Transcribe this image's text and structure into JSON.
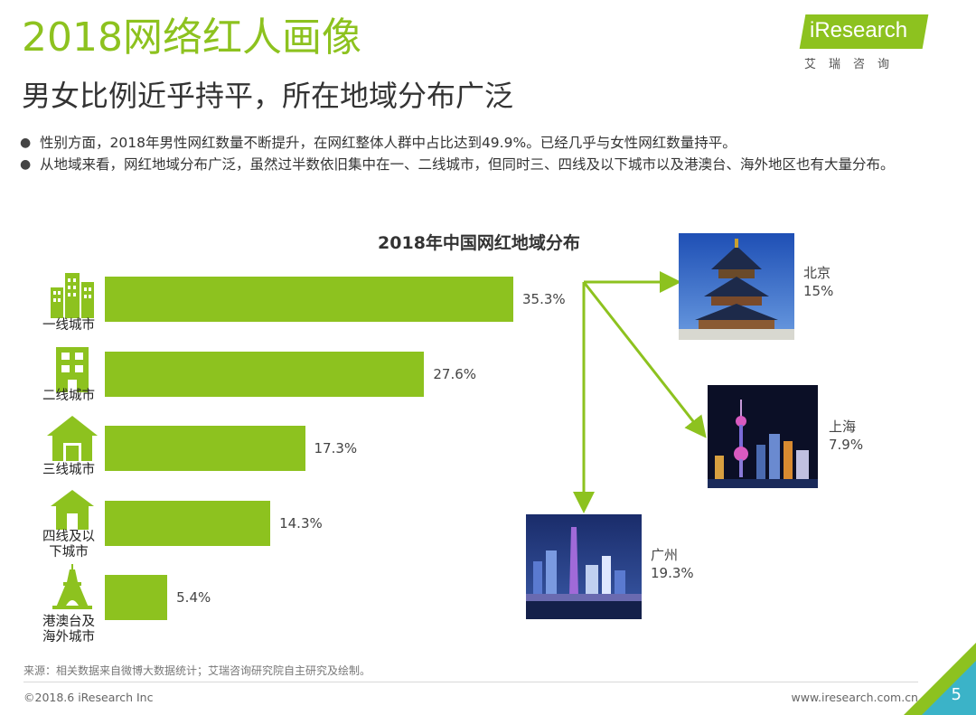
{
  "header": {
    "title": "2018网络红人画像",
    "subtitle": "男女比例近乎持平，所在地域分布广泛"
  },
  "logo": {
    "text": "iResearch",
    "sub": "艾瑞咨询"
  },
  "bullets": [
    "性别方面，2018年男性网红数量不断提升，在网红整体人群中占比达到49.9%。已经几乎与女性网红数量持平。",
    "从地域来看，网红地域分布广泛，虽然过半数依旧集中在一、二线城市，但同时三、四线及以下城市以及港澳台、海外地区也有大量分布。"
  ],
  "chart_data": {
    "type": "bar",
    "orientation": "horizontal",
    "title": "2018年中国网红地域分布",
    "categories": [
      "一线城市",
      "二线城市",
      "三线城市",
      "四线及以下城市",
      "港澳台及海外城市"
    ],
    "category_lines": [
      [
        "一线城市"
      ],
      [
        "二线城市"
      ],
      [
        "三线城市"
      ],
      [
        "四线及以",
        "下城市"
      ],
      [
        "港澳台及",
        "海外城市"
      ]
    ],
    "values": [
      35.3,
      27.6,
      17.3,
      14.3,
      5.4
    ],
    "value_labels": [
      "35.3%",
      "27.6%",
      "17.3%",
      "14.3%",
      "5.4%"
    ],
    "xlim": [
      0,
      35.3
    ],
    "color": "#8dc21f",
    "breakdown_of": "一线城市",
    "breakdown": [
      {
        "city": "北京",
        "value": 15,
        "label": "15%"
      },
      {
        "city": "上海",
        "value": 7.9,
        "label": "7.9%"
      },
      {
        "city": "广州",
        "value": 19.3,
        "label": "19.3%"
      }
    ]
  },
  "colors": {
    "accent": "#8dc21f",
    "text": "#333333"
  },
  "footer": {
    "source": "来源：相关数据来自微博大数据统计；艾瑞咨询研究院自主研究及绘制。",
    "copyright": "©2018.6 iResearch Inc",
    "website": "www.iresearch.com.cn",
    "page": "5"
  }
}
